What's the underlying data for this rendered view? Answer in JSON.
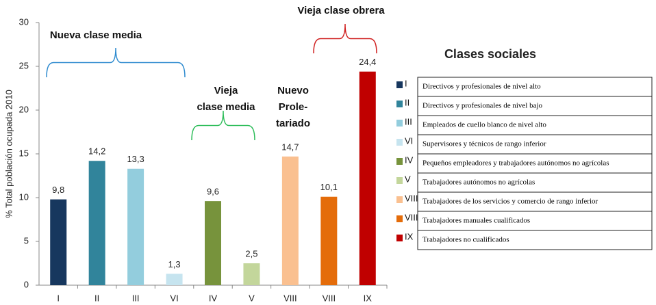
{
  "chart_data": {
    "type": "bar",
    "y_label": "% Total población ocupada 2010",
    "categories": [
      "I",
      "II",
      "III",
      "VI",
      "IV",
      "V",
      "VIII",
      "VIII",
      "IX"
    ],
    "values": [
      9.8,
      14.2,
      13.3,
      1.3,
      9.6,
      2.5,
      14.7,
      10.1,
      24.4
    ],
    "value_labels": [
      "9,8",
      "14,2",
      "13,3",
      "1,3",
      "9,6",
      "2,5",
      "14,7",
      "10,1",
      "24,4"
    ],
    "colors": [
      "#17375e",
      "#31849b",
      "#93cddd",
      "#c6e4ef",
      "#77933c",
      "#c3d69b",
      "#fac090",
      "#e46c0a",
      "#c00000"
    ],
    "ylim": [
      0,
      30
    ],
    "yticks": [
      0,
      5,
      10,
      15,
      20,
      25,
      30
    ],
    "annotations": [
      {
        "lines": [
          "Nueva clase media"
        ],
        "color": "#2e8bcf"
      },
      {
        "lines": [
          "Vieja",
          "clase media"
        ],
        "color": "#2ebd5a"
      },
      {
        "lines": [
          "Nuevo",
          "Prole-",
          "tariado"
        ]
      },
      {
        "lines": [
          "Vieja clase obrera"
        ],
        "color": "#d02020"
      }
    ],
    "legend": {
      "title": "Clases sociales",
      "entries": [
        {
          "key": "I",
          "label": "Directivos y profesionales de nivel alto"
        },
        {
          "key": "II",
          "label": "Directivos y profesionales de nivel bajo"
        },
        {
          "key": "III",
          "label": "Empleados de cuello blanco de nivel alto"
        },
        {
          "key": "VI",
          "label": "Supervisores y técnicos de rango inferior"
        },
        {
          "key": "IV",
          "label": "Pequeños empleadores y trabajadores autónomos no agrícolas"
        },
        {
          "key": "V",
          "label": "Trabajadores autónomos no agrícolas"
        },
        {
          "key": "VIII",
          "label": "Trabajadores de los servicios y comercio de rango inferior"
        },
        {
          "key": "VIII",
          "label": "Trabajadores manuales cualificados"
        },
        {
          "key": "IX",
          "label": "Trabajadores no cualificados"
        }
      ]
    }
  }
}
